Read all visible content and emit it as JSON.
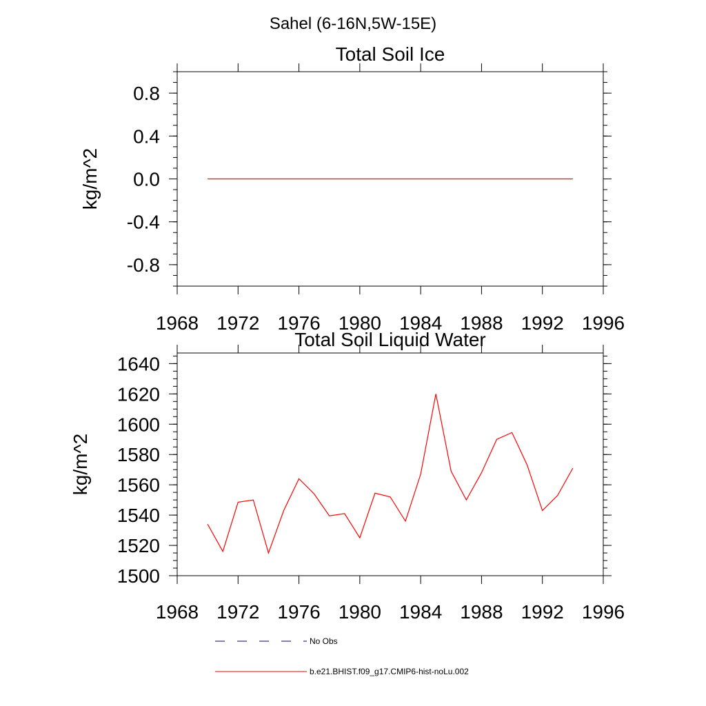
{
  "figure": {
    "suptitle": "Sahel (6-16N,5W-15E)",
    "line_color": "#ff0000",
    "obs_color": "#000080"
  },
  "chart_data": [
    {
      "type": "line",
      "title": "Total Soil Ice",
      "xlabel": "",
      "ylabel": "kg/m^2",
      "xlim": [
        1968,
        1996
      ],
      "ylim": [
        -1.0,
        1.0
      ],
      "x_ticks": [
        1968,
        1972,
        1976,
        1980,
        1984,
        1988,
        1992,
        1996
      ],
      "y_ticks": [
        -0.8,
        -0.4,
        0.0,
        0.4,
        0.8
      ],
      "y_tick_labels": [
        "-0.8",
        "-0.4",
        "0.0",
        "0.4",
        "0.8"
      ],
      "series": [
        {
          "name": "b.e21.BHIST.f09_g17.CMIP6-hist-noLu.002",
          "color": "#ff0000",
          "x": [
            1970,
            1971,
            1972,
            1973,
            1974,
            1975,
            1976,
            1977,
            1978,
            1979,
            1980,
            1981,
            1982,
            1983,
            1984,
            1985,
            1986,
            1987,
            1988,
            1989,
            1990,
            1991,
            1992,
            1993,
            1994
          ],
          "values": [
            0,
            0,
            0,
            0,
            0,
            0,
            0,
            0,
            0,
            0,
            0,
            0,
            0,
            0,
            0,
            0,
            0,
            0,
            0,
            0,
            0,
            0,
            0,
            0,
            0
          ]
        }
      ]
    },
    {
      "type": "line",
      "title": "Total Soil Liquid Water",
      "xlabel": "",
      "ylabel": "kg/m^2",
      "xlim": [
        1968,
        1996
      ],
      "ylim": [
        1500,
        1647
      ],
      "x_ticks": [
        1968,
        1972,
        1976,
        1980,
        1984,
        1988,
        1992,
        1996
      ],
      "y_ticks": [
        1500,
        1520,
        1540,
        1560,
        1580,
        1600,
        1620,
        1640
      ],
      "y_tick_labels": [
        "1500",
        "1520",
        "1540",
        "1560",
        "1580",
        "1600",
        "1620",
        "1640"
      ],
      "series": [
        {
          "name": "b.e21.BHIST.f09_g17.CMIP6-hist-noLu.002",
          "color": "#ff0000",
          "x": [
            1970,
            1971,
            1972,
            1973,
            1974,
            1975,
            1976,
            1977,
            1978,
            1979,
            1980,
            1981,
            1982,
            1983,
            1984,
            1985,
            1986,
            1987,
            1988,
            1989,
            1990,
            1991,
            1992,
            1993,
            1994
          ],
          "values": [
            1534,
            1516,
            1548.5,
            1550,
            1515,
            1543,
            1564,
            1554,
            1539.5,
            1541,
            1525,
            1554.5,
            1552,
            1536,
            1567,
            1620,
            1569,
            1550,
            1568,
            1590,
            1594.5,
            1573,
            1543,
            1553,
            1571
          ]
        }
      ]
    }
  ],
  "legend": [
    {
      "label": "No Obs",
      "style": "dashed",
      "color": "#000080"
    },
    {
      "label": "b.e21.BHIST.f09_g17.CMIP6-hist-noLu.002",
      "style": "solid",
      "color": "#ff0000"
    }
  ]
}
